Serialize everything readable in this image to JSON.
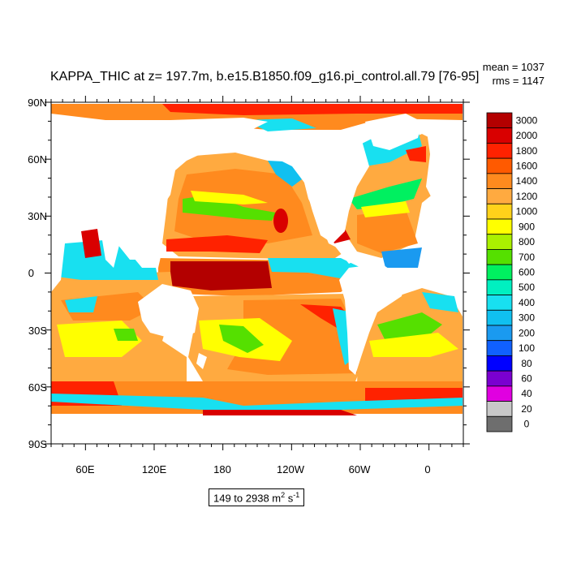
{
  "title": "KAPPA_THIC at z= 197.7m, b.e15.B1850.f09_g16.pi_control.all.79 [76-95]",
  "stats": {
    "mean": "mean = 1037",
    "rms": "rms = 1147"
  },
  "range": {
    "text": "149 to 2938 m",
    "unit_exp1": "2",
    "unit_mid": " s",
    "unit_exp2": "-1"
  },
  "lat_labels": [
    "90N",
    "60N",
    "30N",
    "0",
    "30S",
    "60S",
    "90S"
  ],
  "lon_labels": [
    "60E",
    "120E",
    "180",
    "120W",
    "60W",
    "0"
  ],
  "colorbar": {
    "labels": [
      "3000",
      "2000",
      "1800",
      "1600",
      "1400",
      "1200",
      "1000",
      "900",
      "800",
      "700",
      "600",
      "500",
      "400",
      "300",
      "200",
      "100",
      "80",
      "60",
      "40",
      "20",
      "0"
    ],
    "colors": [
      "#b30000",
      "#d90000",
      "#ff2200",
      "#ff5a00",
      "#ff8a1e",
      "#ffaa40",
      "#ffd21a",
      "#ffff00",
      "#aaf000",
      "#55e000",
      "#00f060",
      "#00f0c0",
      "#18e0f0",
      "#10c0f0",
      "#1a9af0",
      "#1060ff",
      "#0000ff",
      "#7a00d0",
      "#e000e0",
      "#c8c8c8",
      "#6e6e6e"
    ]
  },
  "chart_data": {
    "type": "heatmap",
    "title": "KAPPA_THIC at z= 197.7m, b.e15.B1850.f09_g16.pi_control.all.79 [76-95]",
    "variable": "KAPPA_THIC",
    "mean": 1037,
    "rms": 1147,
    "data_range": [
      149,
      2938
    ],
    "units": "m2 s-1",
    "xlim": [
      30,
      390
    ],
    "ylim": [
      -90,
      90
    ],
    "levels": [
      0,
      20,
      40,
      60,
      80,
      100,
      200,
      300,
      400,
      500,
      600,
      700,
      800,
      900,
      1000,
      1200,
      1400,
      1600,
      1800,
      2000,
      3000
    ]
  }
}
